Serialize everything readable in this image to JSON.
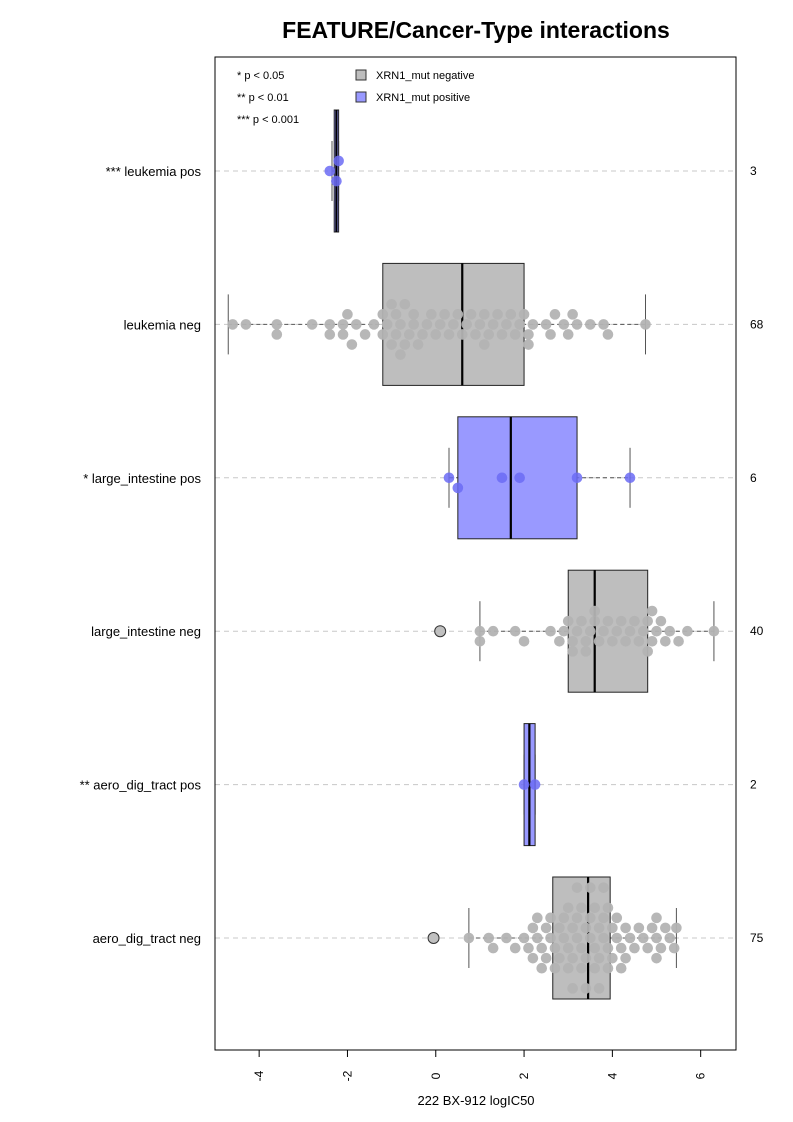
{
  "chart_data": {
    "type": "box",
    "title": "FEATURE/Cancer-Type interactions",
    "xlabel": "222 BX-912 logIC50",
    "xlim": [
      -5,
      6.8
    ],
    "xticks": [
      -4,
      -2,
      0,
      2,
      4,
      6
    ],
    "xtick_labels": [
      "-4",
      "-2",
      "0",
      "2",
      "4",
      "6"
    ],
    "grid": "dashed horizontal lines at each group",
    "significance_legend": [
      "* p < 0.05",
      "** p < 0.01",
      "*** p < 0.001"
    ],
    "legend": [
      {
        "label": "XRN1_mut negative",
        "color": "#bebebe"
      },
      {
        "label": "XRN1_mut positive",
        "color": "#9999ff"
      }
    ],
    "colors": {
      "negative_box": "#bebebe",
      "positive_box": "#9999ff",
      "negative_point": "#b3b3b3",
      "positive_point": "#6b6bf5"
    },
    "groups": [
      {
        "label": "*** leukemia pos",
        "count": "3",
        "status": "positive",
        "q1": -2.3,
        "median": -2.25,
        "q3": -2.2,
        "whisker_low": -2.35,
        "whisker_high": -2.2,
        "points": [
          -2.4,
          -2.25,
          -2.2
        ],
        "outliers": []
      },
      {
        "label": "leukemia neg",
        "count": "68",
        "status": "negative",
        "q1": -1.2,
        "median": 0.6,
        "q3": 2.0,
        "whisker_low": -4.7,
        "whisker_high": 4.75,
        "points": [
          -4.6,
          -4.3,
          -3.6,
          -3.6,
          -2.8,
          -2.4,
          -2.4,
          -2.1,
          -2.1,
          -2.0,
          -1.9,
          -1.8,
          -1.6,
          -1.4,
          -1.2,
          -1.2,
          -1.1,
          -1.0,
          -1.0,
          -0.9,
          -0.9,
          -0.8,
          -0.8,
          -0.7,
          -0.7,
          -0.6,
          -0.5,
          -0.5,
          -0.4,
          -0.3,
          -0.2,
          -0.1,
          0.0,
          0.1,
          0.2,
          0.3,
          0.4,
          0.5,
          0.6,
          0.7,
          0.8,
          0.9,
          1.0,
          1.1,
          1.1,
          1.2,
          1.3,
          1.4,
          1.5,
          1.6,
          1.7,
          1.8,
          1.9,
          2.0,
          2.1,
          2.1,
          2.2,
          2.5,
          2.6,
          2.7,
          2.9,
          3.0,
          3.1,
          3.2,
          3.5,
          3.8,
          3.9,
          4.75
        ],
        "outliers": []
      },
      {
        "label": "* large_intestine pos",
        "count": "6",
        "status": "positive",
        "q1": 0.5,
        "median": 1.7,
        "q3": 3.2,
        "whisker_low": 0.3,
        "whisker_high": 4.4,
        "points": [
          0.3,
          0.5,
          1.5,
          1.9,
          3.2,
          4.4
        ],
        "outliers": []
      },
      {
        "label": "large_intestine neg",
        "count": "40",
        "status": "negative",
        "q1": 3.0,
        "median": 3.6,
        "q3": 4.8,
        "whisker_low": 1.0,
        "whisker_high": 6.3,
        "points": [
          1.0,
          1.0,
          1.3,
          1.8,
          2.0,
          2.6,
          2.8,
          2.9,
          3.0,
          3.1,
          3.1,
          3.2,
          3.3,
          3.4,
          3.4,
          3.5,
          3.6,
          3.6,
          3.7,
          3.8,
          3.9,
          4.0,
          4.1,
          4.2,
          4.3,
          4.4,
          4.5,
          4.6,
          4.7,
          4.8,
          4.8,
          4.9,
          4.9,
          5.0,
          5.1,
          5.2,
          5.3,
          5.5,
          5.7,
          6.3
        ],
        "outliers": [
          0.1
        ]
      },
      {
        "label": "** aero_dig_tract pos",
        "count": "2",
        "status": "positive",
        "q1": 2.0,
        "median": 2.12,
        "q3": 2.25,
        "whisker_low": 2.0,
        "whisker_high": 2.25,
        "points": [
          2.0,
          2.25
        ],
        "outliers": []
      },
      {
        "label": "aero_dig_tract neg",
        "count": "75",
        "status": "negative",
        "q1": 2.65,
        "median": 3.45,
        "q3": 3.95,
        "whisker_low": 0.75,
        "whisker_high": 5.45,
        "points": [
          0.75,
          1.2,
          1.3,
          1.6,
          1.8,
          2.0,
          2.1,
          2.2,
          2.2,
          2.3,
          2.3,
          2.4,
          2.4,
          2.5,
          2.5,
          2.6,
          2.6,
          2.7,
          2.7,
          2.8,
          2.8,
          2.9,
          2.9,
          3.0,
          3.0,
          3.0,
          3.1,
          3.1,
          3.1,
          3.2,
          3.2,
          3.2,
          3.3,
          3.3,
          3.3,
          3.4,
          3.4,
          3.4,
          3.5,
          3.5,
          3.5,
          3.6,
          3.6,
          3.6,
          3.7,
          3.7,
          3.7,
          3.8,
          3.8,
          3.8,
          3.9,
          3.9,
          3.9,
          4.0,
          4.0,
          4.1,
          4.1,
          4.2,
          4.2,
          4.3,
          4.3,
          4.4,
          4.5,
          4.6,
          4.7,
          4.8,
          4.9,
          5.0,
          5.0,
          5.1,
          5.2,
          5.3,
          5.4,
          5.45,
          5.0
        ],
        "outliers": [
          -0.05
        ]
      }
    ]
  }
}
